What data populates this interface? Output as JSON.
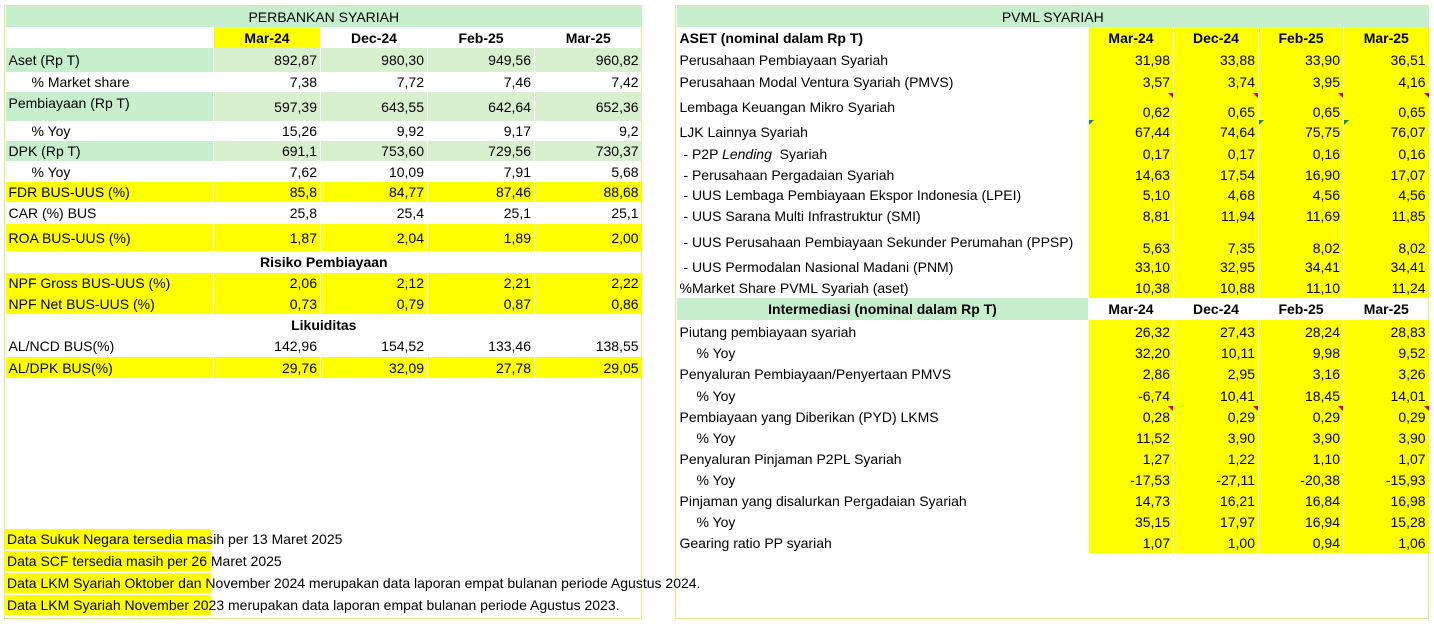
{
  "left": {
    "title": "PERBANKAN SYARIAH",
    "periods": [
      "Mar-24",
      "Dec-24",
      "Feb-25",
      "Mar-25"
    ],
    "rows": [
      {
        "label": "Aset (Rp T)",
        "values": [
          "892,87",
          "980,30",
          "949,56",
          "960,82"
        ]
      },
      {
        "label": "% Market share",
        "values": [
          "7,38",
          "7,72",
          "7,46",
          "7,42"
        ]
      },
      {
        "label": "Pembiayaan (Rp T)",
        "values": [
          "597,39",
          "643,55",
          "642,64",
          "652,36"
        ]
      },
      {
        "label": "% Yoy",
        "values": [
          "15,26",
          "9,92",
          "9,17",
          "9,2"
        ]
      },
      {
        "label": "DPK (Rp T)",
        "values": [
          "691,1",
          "753,60",
          "729,56",
          "730,37"
        ]
      },
      {
        "label": "% Yoy",
        "values": [
          "7,62",
          "10,09",
          "7,91",
          "5,68"
        ]
      },
      {
        "label": "FDR BUS-UUS (%)",
        "values": [
          "85,8",
          "84,77",
          "87,46",
          "88,68"
        ]
      },
      {
        "label": "CAR (%) BUS",
        "values": [
          "25,8",
          "25,4",
          "25,1",
          "25,1"
        ]
      },
      {
        "label": "ROA  BUS-UUS (%)",
        "values": [
          "1,87",
          "2,04",
          "1,89",
          "2,00"
        ]
      }
    ],
    "risk_title": "Risiko Pembiayaan",
    "risk_rows": [
      {
        "label": "NPF Gross BUS-UUS (%)",
        "values": [
          "2,06",
          "2,12",
          "2,21",
          "2,22"
        ]
      },
      {
        "label": "NPF Net BUS-UUS (%)",
        "values": [
          "0,73",
          "0,79",
          "0,87",
          "0,86"
        ]
      }
    ],
    "liq_title": "Likuiditas",
    "liq_rows": [
      {
        "label": "AL/NCD BUS(%)",
        "values": [
          "142,96",
          "154,52",
          "133,46",
          "138,55"
        ]
      },
      {
        "label": "AL/DPK BUS(%)",
        "values": [
          "29,76",
          "32,09",
          "27,78",
          "29,05"
        ]
      }
    ]
  },
  "right": {
    "title": "PVML SYARIAH",
    "asset_header": "ASET (nominal dalam Rp T)",
    "periods": [
      "Mar-24",
      "Dec-24",
      "Feb-25",
      "Mar-25"
    ],
    "asset_rows": [
      {
        "label": "Perusahaan Pembiayaan Syariah",
        "values": [
          "31,98",
          "33,88",
          "33,90",
          "36,51"
        ]
      },
      {
        "label": "Perusahaan Modal Ventura Syariah (PMVS)",
        "values": [
          "3,57",
          "3,74",
          "3,95",
          "4,16"
        ]
      },
      {
        "label": "Lembaga Keuangan Mikro Syariah",
        "values": [
          "0,62",
          "0,65",
          "0,65",
          "0,65"
        ]
      },
      {
        "label": "LJK Lainnya Syariah",
        "values": [
          "67,44",
          "74,64",
          "75,75",
          "76,07"
        ]
      },
      {
        "label_pre": " - P2P ",
        "label_em": "Lending",
        "label_post": "  Syariah",
        "values": [
          "0,17",
          "0,17",
          "0,16",
          "0,16"
        ]
      },
      {
        "label": " - Perusahaan Pergadaian Syariah",
        "values": [
          "14,63",
          "17,54",
          "16,90",
          "17,07"
        ]
      },
      {
        "label": " - UUS Lembaga Pembiayaan Ekspor Indonesia (LPEI)",
        "values": [
          "5,10",
          "4,68",
          "4,56",
          "4,56"
        ]
      },
      {
        "label": " - UUS Sarana Multi Infrastruktur (SMI)",
        "values": [
          "8,81",
          "11,94",
          "11,69",
          "11,85"
        ]
      },
      {
        "label": " - UUS Perusahaan Pembiayaan Sekunder Perumahan (PPSP)",
        "values": [
          "5,63",
          "7,35",
          "8,02",
          "8,02"
        ]
      },
      {
        "label": " - UUS Permodalan Nasional Madani (PNM)",
        "values": [
          "33,10",
          "32,95",
          "34,41",
          "34,41"
        ]
      },
      {
        "label": "%Market Share PVML Syariah (aset)",
        "values": [
          "10,38",
          "10,88",
          "11,10",
          "11,24"
        ]
      }
    ],
    "inter_header": "Intermediasi (nominal dalam Rp T)",
    "inter_rows": [
      {
        "label": "Piutang pembiayaan syariah",
        "values": [
          "26,32",
          "27,43",
          "28,24",
          "28,83"
        ]
      },
      {
        "label": "% Yoy",
        "values": [
          "32,20",
          "10,11",
          "9,98",
          "9,52"
        ]
      },
      {
        "label": "Penyaluran Pembiayaan/Penyertaan PMVS",
        "values": [
          "2,86",
          "2,95",
          "3,16",
          "3,26"
        ]
      },
      {
        "label": "% Yoy",
        "values": [
          "-6,74",
          "10,41",
          "18,45",
          "14,01"
        ]
      },
      {
        "label": "Pembiayaan yang Diberikan (PYD) LKMS",
        "values": [
          "0,28",
          "0,29",
          "0,29",
          "0,29"
        ]
      },
      {
        "label": "% Yoy",
        "values": [
          "11,52",
          "3,90",
          "3,90",
          "3,90"
        ]
      },
      {
        "label": "Penyaluran Pinjaman P2PL Syariah",
        "values": [
          "1,27",
          "1,22",
          "1,10",
          "1,07"
        ]
      },
      {
        "label": "% Yoy",
        "values": [
          "-17,53",
          "-27,11",
          "-20,38",
          "-15,93"
        ]
      },
      {
        "label": "Pinjaman yang disalurkan Pergadaian Syariah",
        "values": [
          "14,73",
          "16,21",
          "16,84",
          "16,98"
        ]
      },
      {
        "label": "% Yoy",
        "values": [
          "35,15",
          "17,97",
          "16,94",
          "15,28"
        ]
      },
      {
        "label": "Gearing ratio PP syariah",
        "values": [
          "1,07",
          "1,00",
          "0,94",
          "1,06"
        ]
      }
    ]
  },
  "notes": [
    "Data Sukuk Negara tersedia masih per 13 Maret 2025",
    "Data SCF tersedia masih per 26 Maret 2025",
    "Data LKM Syariah Oktober dan November 2024 merupakan data laporan empat bulanan periode Agustus 2024.",
    "Data LKM Syariah November 2023 merupakan data laporan empat bulanan periode Agustus 2023."
  ],
  "colors": {
    "highlight": "#ffff00",
    "header_green": "#c6efce",
    "border": "#e4ec80"
  }
}
